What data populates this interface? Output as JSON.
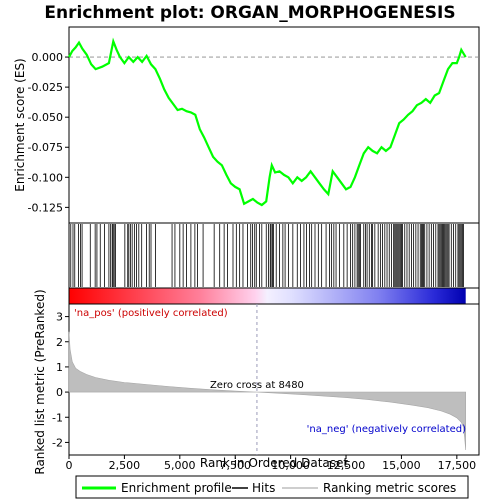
{
  "chart_data": {
    "type": "line",
    "title": "Enrichment plot: ORGAN_MORPHOGENESIS",
    "xlabel": "Rank in Ordered Dataset",
    "ylabel_top": "Enrichment score (ES)",
    "ylabel_bottom": "Ranked list metric (PreRanked)",
    "xlim": [
      0,
      18500
    ],
    "x_ticks": [
      0,
      2500,
      5000,
      7500,
      10000,
      12500,
      15000,
      17500
    ],
    "x_tick_labels": [
      "0",
      "2,500",
      "5,000",
      "7,500",
      "10,000",
      "12,500",
      "15,000",
      "17,500"
    ],
    "es_ylim": [
      -0.138,
      0.025
    ],
    "es_ticks": [
      0.0,
      -0.025,
      -0.05,
      -0.075,
      -0.1,
      -0.125
    ],
    "es_tick_labels": [
      "0.000",
      "-0.025",
      "-0.050",
      "-0.075",
      "-0.100",
      "-0.125"
    ],
    "metric_ylim": [
      -2.5,
      3.5
    ],
    "metric_ticks": [
      3,
      2,
      1,
      0,
      -1,
      -2
    ],
    "metric_tick_labels": [
      "3",
      "2",
      "1",
      "0",
      "-1",
      "-2"
    ],
    "zero_cross": 8480,
    "zero_cross_label": "Zero cross at 8480",
    "pos_label": "'na_pos' (positively correlated)",
    "neg_label": "'na_neg' (negatively correlated)",
    "total_ranks": 17900,
    "colors": {
      "es_line": "#00ff00",
      "hits": "#000000",
      "metric_fill": "#bebebe",
      "pos_text": "#cc0000",
      "neg_text": "#0000cc",
      "zero_line": "#9a9ab8"
    },
    "enrichment_profile": {
      "x": [
        0,
        150,
        300,
        450,
        600,
        800,
        1000,
        1200,
        1500,
        1800,
        2000,
        2150,
        2300,
        2500,
        2700,
        2900,
        3100,
        3300,
        3500,
        3700,
        3900,
        4100,
        4300,
        4500,
        4700,
        4900,
        5100,
        5300,
        5500,
        5700,
        5900,
        6100,
        6300,
        6500,
        6700,
        6900,
        7100,
        7300,
        7500,
        7700,
        7900,
        8100,
        8300,
        8500,
        8700,
        8900,
        9050,
        9150,
        9300,
        9500,
        9700,
        9900,
        10100,
        10300,
        10500,
        10700,
        10900,
        11100,
        11300,
        11500,
        11700,
        11900,
        12100,
        12300,
        12500,
        12700,
        12900,
        13100,
        13300,
        13500,
        13700,
        13900,
        14100,
        14300,
        14500,
        14700,
        14900,
        15100,
        15300,
        15500,
        15700,
        15900,
        16100,
        16300,
        16500,
        16700,
        16900,
        17100,
        17300,
        17500,
        17600,
        17700,
        17800,
        17900
      ],
      "y": [
        0.0,
        0.005,
        0.008,
        0.012,
        0.007,
        0.002,
        -0.006,
        -0.01,
        -0.008,
        -0.005,
        0.013,
        0.006,
        0.0,
        -0.005,
        0.0,
        -0.004,
        0.0,
        -0.004,
        0.001,
        -0.006,
        -0.01,
        -0.018,
        -0.027,
        -0.034,
        -0.039,
        -0.044,
        -0.043,
        -0.045,
        -0.046,
        -0.048,
        -0.06,
        -0.067,
        -0.075,
        -0.083,
        -0.087,
        -0.09,
        -0.098,
        -0.105,
        -0.108,
        -0.11,
        -0.122,
        -0.12,
        -0.118,
        -0.121,
        -0.123,
        -0.12,
        -0.1,
        -0.09,
        -0.096,
        -0.095,
        -0.098,
        -0.1,
        -0.105,
        -0.1,
        -0.103,
        -0.1,
        -0.095,
        -0.1,
        -0.105,
        -0.11,
        -0.114,
        -0.095,
        -0.1,
        -0.105,
        -0.11,
        -0.108,
        -0.1,
        -0.09,
        -0.08,
        -0.075,
        -0.078,
        -0.08,
        -0.075,
        -0.078,
        -0.075,
        -0.065,
        -0.055,
        -0.052,
        -0.048,
        -0.045,
        -0.04,
        -0.038,
        -0.035,
        -0.038,
        -0.032,
        -0.03,
        -0.02,
        -0.01,
        -0.005,
        -0.005,
        0.0,
        0.006,
        0.003,
        0.0
      ]
    },
    "hits": [
      80,
      180,
      260,
      430,
      520,
      590,
      960,
      1180,
      1260,
      1410,
      1600,
      1800,
      1880,
      1950,
      1990,
      2040,
      2100,
      2520,
      2650,
      2700,
      2780,
      2850,
      2950,
      3050,
      3150,
      3280,
      3500,
      3620,
      3700,
      3900,
      4650,
      4780,
      5000,
      5150,
      5300,
      5500,
      5680,
      5800,
      6050,
      6550,
      6800,
      7000,
      7150,
      7400,
      7550,
      7700,
      7850,
      8050,
      8200,
      8280,
      8380,
      8450,
      8600,
      8700,
      8900,
      9000,
      9080,
      9120,
      9180,
      9230,
      9350,
      9500,
      9650,
      9750,
      9900,
      10100,
      10300,
      10450,
      10600,
      10720,
      10850,
      10950,
      11100,
      11250,
      11400,
      11600,
      11750,
      11850,
      11950,
      12050,
      12200,
      12400,
      12550,
      12700,
      12800,
      12900,
      13000,
      13050,
      13100,
      13150,
      13300,
      13380,
      13450,
      13550,
      13650,
      13700,
      13800,
      13950,
      14050,
      14150,
      14250,
      14350,
      14450,
      14550,
      14650,
      14700,
      14750,
      14800,
      14850,
      14900,
      14950,
      15000,
      15050,
      15150,
      15250,
      15350,
      15450,
      15550,
      15650,
      15750,
      15850,
      15900,
      15950,
      16000,
      16050,
      16150,
      16250,
      16350,
      16450,
      16550,
      16650,
      16700,
      16750,
      16800,
      16850,
      16900,
      16950,
      17000,
      17050,
      17100,
      17150,
      17250,
      17350,
      17450,
      17550,
      17600,
      17650,
      17700,
      17750,
      17800
    ],
    "metric_profile": {
      "x": [
        0,
        50,
        150,
        300,
        500,
        800,
        1200,
        1800,
        2500,
        3500,
        4500,
        5500,
        6500,
        7500,
        8480,
        9500,
        10500,
        11500,
        12500,
        13500,
        14500,
        15500,
        16200,
        16800,
        17200,
        17500,
        17700,
        17800,
        17850,
        17900
      ],
      "y": [
        2.4,
        1.7,
        1.2,
        0.95,
        0.82,
        0.7,
        0.58,
        0.47,
        0.38,
        0.3,
        0.22,
        0.15,
        0.09,
        0.04,
        0.0,
        -0.05,
        -0.1,
        -0.16,
        -0.22,
        -0.3,
        -0.4,
        -0.52,
        -0.62,
        -0.75,
        -0.88,
        -1.02,
        -1.2,
        -1.4,
        -1.8,
        -2.3
      ]
    }
  },
  "legend": {
    "items": [
      {
        "label": "Enrichment profile",
        "color": "#00ff00",
        "style": "line"
      },
      {
        "label": "Hits",
        "color": "#000000",
        "style": "line"
      },
      {
        "label": "Ranking metric scores",
        "color": "#bebebe",
        "style": "line"
      }
    ]
  }
}
